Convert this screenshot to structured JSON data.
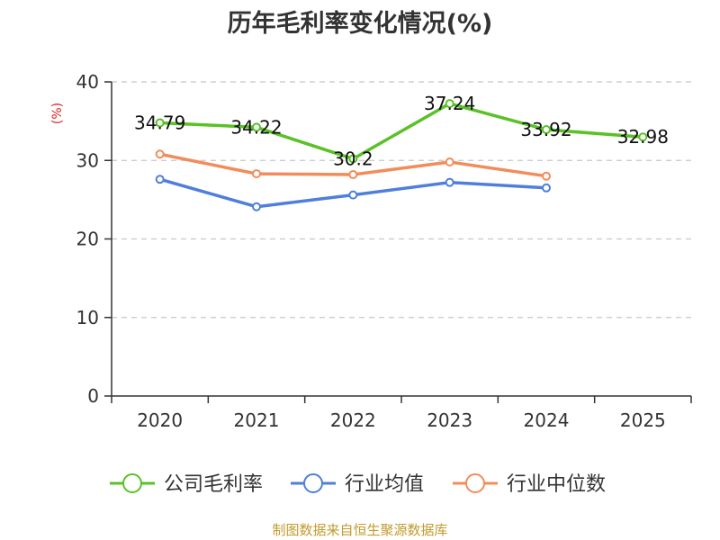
{
  "chart_data": {
    "type": "line",
    "title": "历年毛利率变化情况(%)",
    "ylabel": "(%)",
    "xlabel": "",
    "categories": [
      "2020",
      "2021",
      "2022",
      "2023",
      "2024",
      "2025"
    ],
    "ylim": [
      0,
      40
    ],
    "yticks": [
      0,
      10,
      20,
      30,
      40
    ],
    "grid": true,
    "legend_position": "bottom",
    "series": [
      {
        "name": "公司毛利率",
        "color": "#5ac127",
        "values": [
          34.79,
          34.22,
          30.2,
          37.24,
          33.92,
          32.98
        ],
        "labels": [
          "34.79",
          "34.22",
          "30.2",
          "37.24",
          "33.92",
          "32.98"
        ]
      },
      {
        "name": "行业均值",
        "color": "#4f7fdb",
        "values": [
          27.6,
          24.1,
          25.6,
          27.2,
          26.5,
          null
        ]
      },
      {
        "name": "行业中位数",
        "color": "#f28c5a",
        "values": [
          30.8,
          28.3,
          28.2,
          29.8,
          28.0,
          null
        ]
      }
    ]
  },
  "source": "制图数据来自恒生聚源数据库"
}
